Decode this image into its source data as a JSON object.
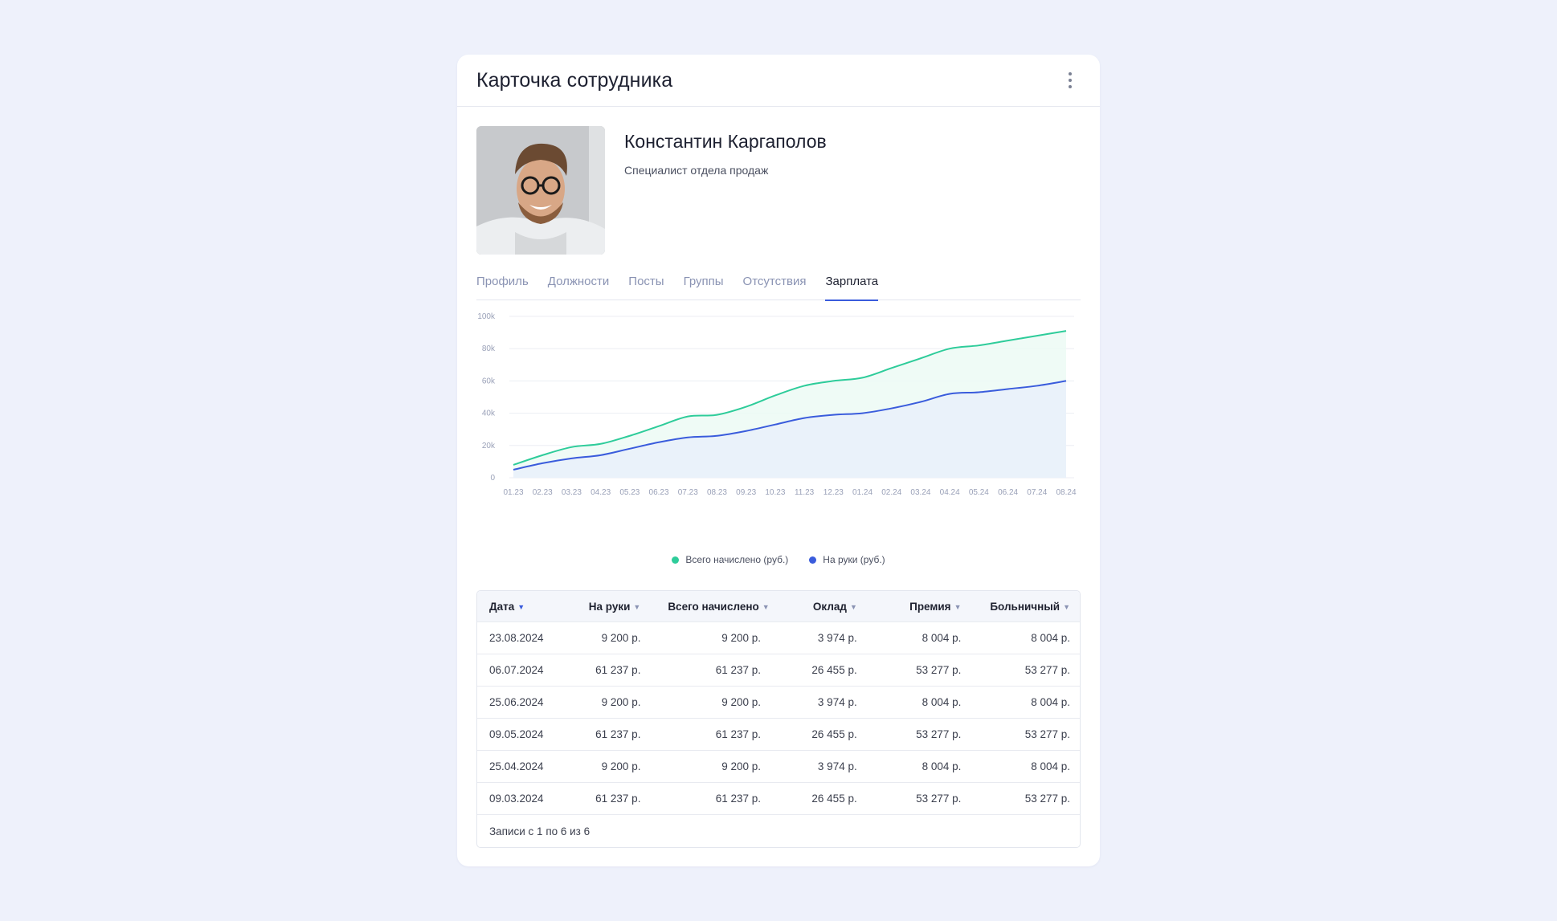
{
  "header": {
    "title": "Карточка сотрудника",
    "menu_icon": "more-vertical-icon"
  },
  "employee": {
    "name": "Константин Каргаполов",
    "role": "Специалист отдела продаж"
  },
  "tabs": [
    {
      "label": "Профиль",
      "active": false
    },
    {
      "label": "Должности",
      "active": false
    },
    {
      "label": "Посты",
      "active": false
    },
    {
      "label": "Группы",
      "active": false
    },
    {
      "label": "Отсутствия",
      "active": false
    },
    {
      "label": "Зарплата",
      "active": true
    }
  ],
  "chart_data": {
    "type": "area",
    "categories": [
      "01.23",
      "02.23",
      "03.23",
      "04.23",
      "05.23",
      "06.23",
      "07.23",
      "08.23",
      "09.23",
      "10.23",
      "11.23",
      "12.23",
      "01.24",
      "02.24",
      "03.24",
      "04.24",
      "05.24",
      "06.24",
      "07.24",
      "08.24"
    ],
    "series": [
      {
        "name": "Всего начислено (руб.)",
        "color": "#2ecc9a",
        "values": [
          8000,
          14000,
          19000,
          21000,
          26000,
          32000,
          38000,
          39000,
          44000,
          51000,
          57000,
          60000,
          62000,
          68000,
          74000,
          80000,
          82000,
          85000,
          88000,
          91000
        ]
      },
      {
        "name": "На руки (руб.)",
        "color": "#3a5cdc",
        "values": [
          5000,
          9000,
          12000,
          14000,
          18000,
          22000,
          25000,
          26000,
          29000,
          33000,
          37000,
          39000,
          40000,
          43000,
          47000,
          52000,
          53000,
          55000,
          57000,
          60000
        ]
      }
    ],
    "yticks": [
      "0",
      "20k",
      "40k",
      "60k",
      "80k",
      "100k"
    ],
    "ylim": [
      0,
      100000
    ],
    "grid": true,
    "legend": "bottom-center"
  },
  "table": {
    "columns": [
      {
        "label": "Дата",
        "sort_icon": "chevron-down-icon",
        "active": true
      },
      {
        "label": "На руки",
        "sort_icon": "chevron-down-icon",
        "active": false
      },
      {
        "label": "Всего начислено",
        "sort_icon": "chevron-down-icon",
        "active": false
      },
      {
        "label": "Оклад",
        "sort_icon": "chevron-down-icon",
        "active": false
      },
      {
        "label": "Премия",
        "sort_icon": "chevron-down-icon",
        "active": false
      },
      {
        "label": "Больничный",
        "sort_icon": "chevron-down-icon",
        "active": false
      }
    ],
    "rows": [
      [
        "23.08.2024",
        "9 200 р.",
        "9 200 р.",
        "3 974 р.",
        "8 004 р.",
        "8 004 р."
      ],
      [
        "06.07.2024",
        "61 237 р.",
        "61 237 р.",
        "26 455 р.",
        "53 277 р.",
        "53 277 р."
      ],
      [
        "25.06.2024",
        "9 200 р.",
        "9 200 р.",
        "3 974 р.",
        "8 004 р.",
        "8 004 р."
      ],
      [
        "09.05.2024",
        "61 237 р.",
        "61 237 р.",
        "26 455 р.",
        "53 277 р.",
        "53 277 р."
      ],
      [
        "25.04.2024",
        "9 200 р.",
        "9 200 р.",
        "3 974 р.",
        "8 004 р.",
        "8 004 р."
      ],
      [
        "09.03.2024",
        "61 237 р.",
        "61 237 р.",
        "26 455 р.",
        "53 277 р.",
        "53 277 р."
      ]
    ],
    "footer": "Записи с 1 по 6 из 6"
  }
}
